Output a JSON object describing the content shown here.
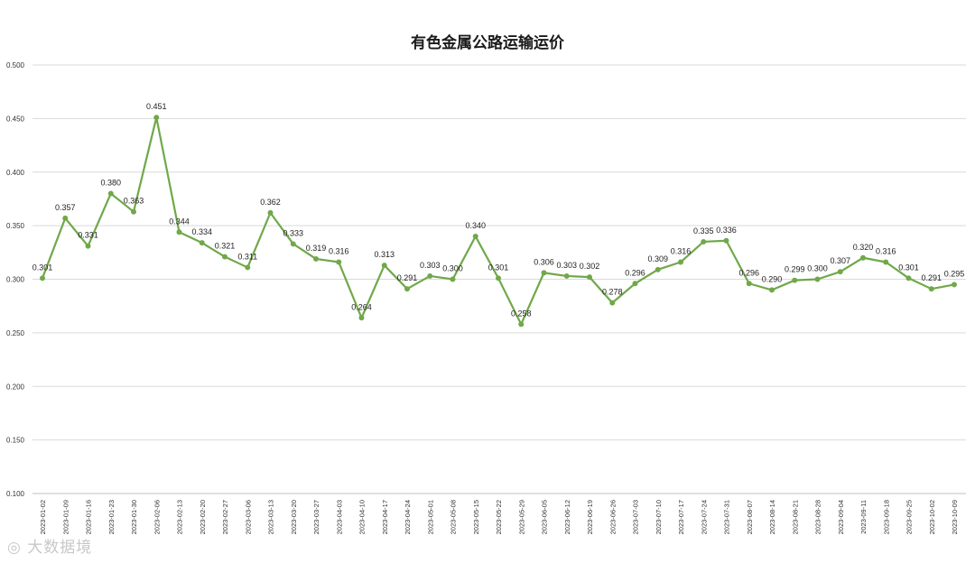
{
  "chart_data": {
    "type": "line",
    "title": "有色金属公路运输运价",
    "xlabel": "",
    "ylabel": "",
    "ylim": [
      0.1,
      0.5
    ],
    "yticks": [
      "0.100",
      "0.150",
      "0.200",
      "0.250",
      "0.300",
      "0.350",
      "0.400",
      "0.450",
      "0.500"
    ],
    "grid": true,
    "legend": "none",
    "line_color": "#70a84a",
    "categories": [
      "2023-01-02",
      "2023-01-09",
      "2023-01-16",
      "2023-01-23",
      "2023-01-30",
      "2023-02-06",
      "2023-02-13",
      "2023-02-20",
      "2023-02-27",
      "2023-03-06",
      "2023-03-13",
      "2023-03-20",
      "2023-03-27",
      "2023-04-03",
      "2023-04-10",
      "2023-04-17",
      "2023-04-24",
      "2023-05-01",
      "2023-05-08",
      "2023-05-15",
      "2023-05-22",
      "2023-05-29",
      "2023-06-05",
      "2023-06-12",
      "2023-06-19",
      "2023-06-26",
      "2023-07-03",
      "2023-07-10",
      "2023-07-17",
      "2023-07-24",
      "2023-07-31",
      "2023-08-07",
      "2023-08-14",
      "2023-08-21",
      "2023-08-28",
      "2023-09-04",
      "2023-09-11",
      "2023-09-18",
      "2023-09-25",
      "2023-10-02",
      "2023-10-09"
    ],
    "values": [
      0.301,
      0.357,
      0.331,
      0.38,
      0.363,
      0.451,
      0.344,
      0.334,
      0.321,
      0.311,
      0.362,
      0.333,
      0.319,
      0.316,
      0.264,
      0.313,
      0.291,
      0.303,
      0.3,
      0.34,
      0.301,
      0.258,
      0.306,
      0.303,
      0.302,
      0.278,
      0.296,
      0.309,
      0.316,
      0.335,
      0.336,
      0.296,
      0.29,
      0.299,
      0.3,
      0.307,
      0.32,
      0.316,
      0.301,
      0.291,
      0.295
    ],
    "data_labels": [
      "0.301",
      "0.357",
      "0.331",
      "0.380",
      "0.363",
      "0.451",
      "0.344",
      "0.334",
      "0.321",
      "0.311",
      "0.362",
      "0.333",
      "0.319",
      "0.316",
      "0.264",
      "0.313",
      "0.291",
      "0.303",
      "0.300",
      "0.340",
      "0.301",
      "0.258",
      "0.306",
      "0.303",
      "0.302",
      "0.278",
      "0.296",
      "0.309",
      "0.316",
      "0.335",
      "0.336",
      "0.296",
      "0.290",
      "0.299",
      "0.300",
      "0.307",
      "0.320",
      "0.316",
      "0.301",
      "0.291",
      "0.295"
    ]
  },
  "watermark": "大数据境"
}
